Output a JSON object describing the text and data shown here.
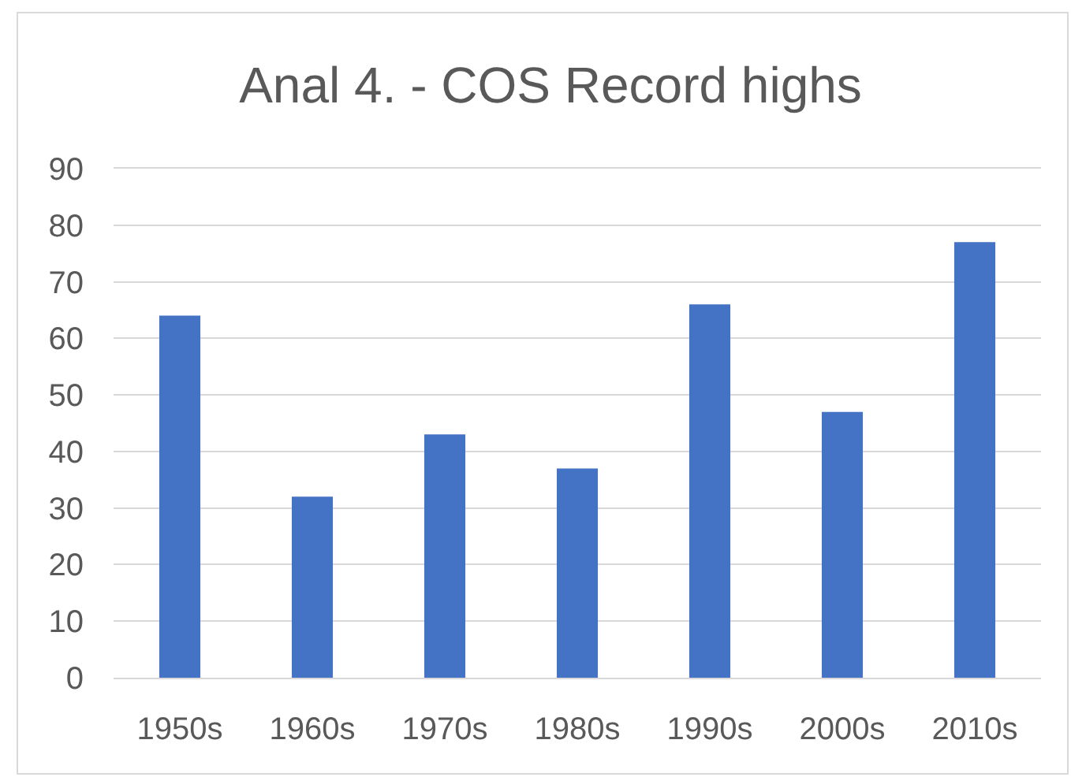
{
  "chart_data": {
    "type": "bar",
    "title": "Anal 4. - COS Record highs",
    "categories": [
      "1950s",
      "1960s",
      "1970s",
      "1980s",
      "1990s",
      "2000s",
      "2010s"
    ],
    "values": [
      64,
      32,
      43,
      37,
      66,
      47,
      77
    ],
    "color": "#4472c4",
    "ylim": [
      0,
      90
    ],
    "yticks": [
      0,
      10,
      20,
      30,
      40,
      50,
      60,
      70,
      80,
      90
    ],
    "grid": "y",
    "legend": false
  }
}
